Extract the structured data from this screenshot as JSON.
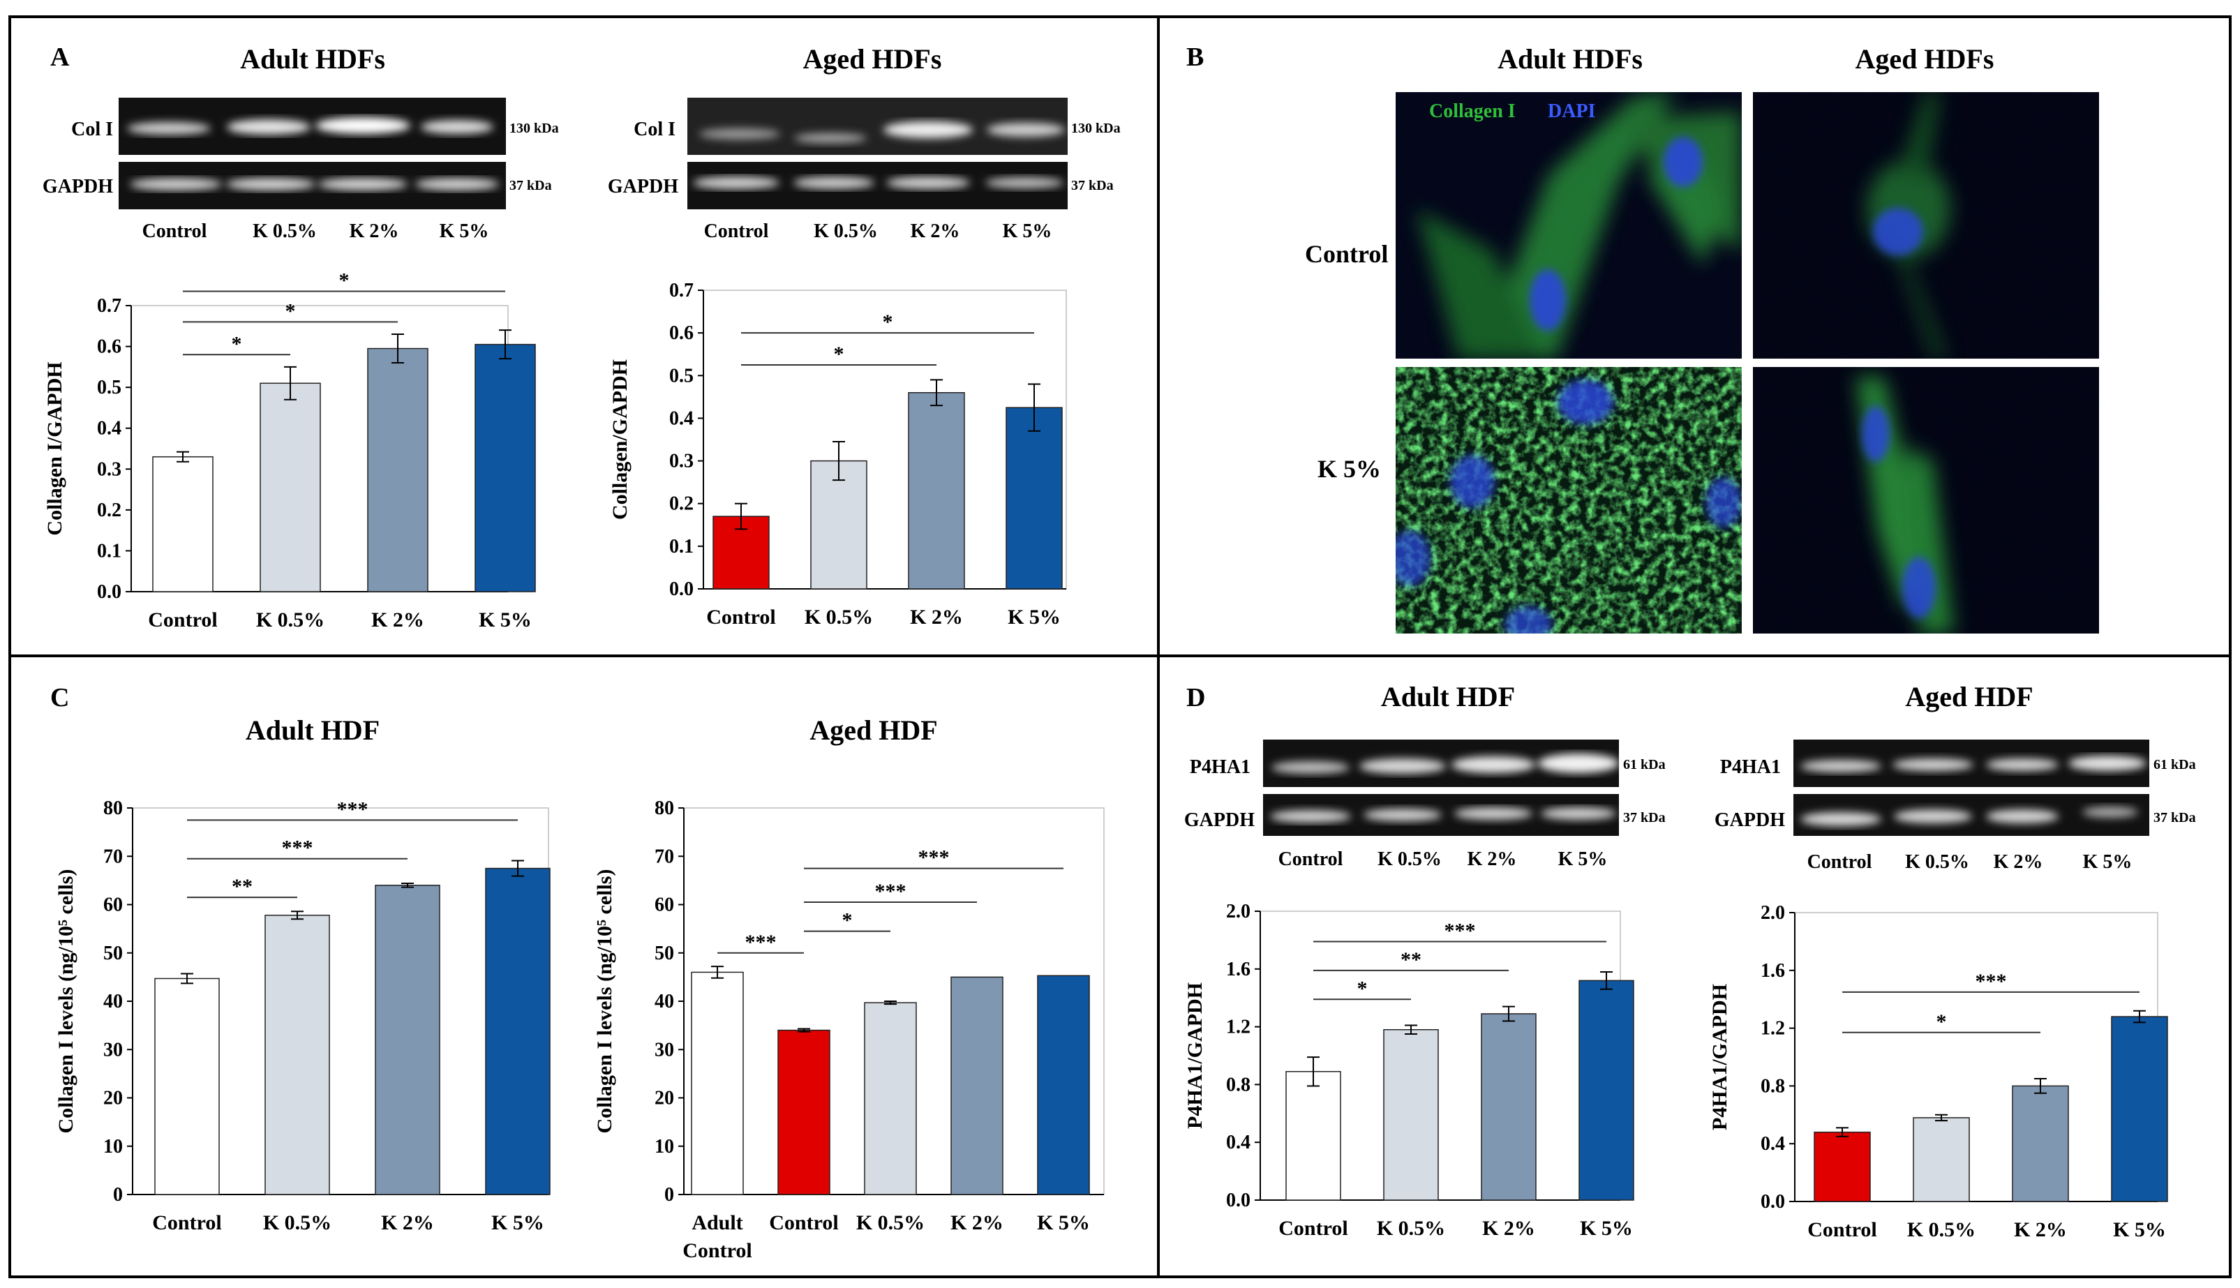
{
  "panels": {
    "A": {
      "letter": "A",
      "adult": {
        "title": "Adult HDFs",
        "blot_rows": [
          {
            "label": "Col I",
            "kda": "130 kDa"
          },
          {
            "label": "GAPDH",
            "kda": "37 kDa"
          }
        ],
        "lane_labels": [
          "Control",
          "K 0.5%",
          "K 2%",
          "K 5%"
        ]
      },
      "aged": {
        "title": "Aged HDFs",
        "blot_rows": [
          {
            "label": "Col I",
            "kda": "130 kDa"
          },
          {
            "label": "GAPDH",
            "kda": "37 kDa"
          }
        ],
        "lane_labels": [
          "Control",
          "K 0.5%",
          "K 2%",
          "K 5%"
        ]
      }
    },
    "B": {
      "letter": "B",
      "col_titles": [
        "Adult HDFs",
        "Aged HDFs"
      ],
      "row_labels": [
        "Control",
        "K 5%"
      ],
      "legend_collagen": "Collagen  I",
      "legend_dapi": "DAPI",
      "colors": {
        "collagen": "#2fbf3a",
        "dapi": "#3a5cff"
      }
    },
    "C": {
      "letter": "C",
      "titles": [
        "Adult HDF",
        "Aged HDF"
      ]
    },
    "D": {
      "letter": "D",
      "adult": {
        "title": "Adult HDF",
        "blot_rows": [
          {
            "label": "P4HA1",
            "kda": "61 kDa"
          },
          {
            "label": "GAPDH",
            "kda": "37 kDa"
          }
        ],
        "lane_labels": [
          "Control",
          "K 0.5%",
          "K 2%",
          "K 5%"
        ]
      },
      "aged": {
        "title": "Aged HDF",
        "blot_rows": [
          {
            "label": "P4HA1",
            "kda": "61 kDa"
          },
          {
            "label": "GAPDH",
            "kda": "37 kDa"
          }
        ],
        "lane_labels": [
          "Control",
          "K 0.5%",
          "K 2%",
          "K 5%"
        ]
      }
    }
  },
  "chart_data": [
    {
      "id": "A-adult",
      "type": "bar",
      "ylabel": "Collagen I/GAPDH",
      "ylim": [
        0,
        0.7
      ],
      "yticks": [
        "0.0",
        "0.1",
        "0.2",
        "0.3",
        "0.4",
        "0.5",
        "0.6",
        "0.7"
      ],
      "categories": [
        "Control",
        "K 0.5%",
        "K 2%",
        "K 5%"
      ],
      "values": [
        0.33,
        0.51,
        0.595,
        0.605
      ],
      "errors": [
        0.012,
        0.04,
        0.035,
        0.035
      ],
      "colors": [
        "#ffffff",
        "#d6dce4",
        "#8097b1",
        "#0f56a0"
      ],
      "significance": [
        {
          "from": 0,
          "to": 1,
          "label": "*",
          "y": 0.58
        },
        {
          "from": 0,
          "to": 2,
          "label": "*",
          "y": 0.66
        },
        {
          "from": 0,
          "to": 3,
          "label": "*",
          "y": 0.735
        }
      ]
    },
    {
      "id": "A-aged",
      "type": "bar",
      "ylabel": "Collagen/GAPDH",
      "ylim": [
        0,
        0.7
      ],
      "yticks": [
        "0.0",
        "0.1",
        "0.2",
        "0.3",
        "0.4",
        "0.5",
        "0.6",
        "0.7"
      ],
      "categories": [
        "Control",
        "K 0.5%",
        "K 2%",
        "K 5%"
      ],
      "values": [
        0.17,
        0.3,
        0.46,
        0.425
      ],
      "errors": [
        0.03,
        0.045,
        0.03,
        0.055
      ],
      "colors": [
        "#e00000",
        "#d6dce4",
        "#8097b1",
        "#0f56a0"
      ],
      "significance": [
        {
          "from": 0,
          "to": 2,
          "label": "*",
          "y": 0.525
        },
        {
          "from": 0,
          "to": 3,
          "label": "*",
          "y": 0.6
        }
      ]
    },
    {
      "id": "C-adult",
      "type": "bar",
      "ylabel": "Collagen I levels  (ng/10⁵ cells)",
      "ylim": [
        0,
        80
      ],
      "yticks": [
        "0",
        "10",
        "20",
        "30",
        "40",
        "50",
        "60",
        "70",
        "80"
      ],
      "categories": [
        "Control",
        "K 0.5%",
        "K 2%",
        "K 5%"
      ],
      "values": [
        44.7,
        57.8,
        64.0,
        67.5
      ],
      "errors": [
        1.0,
        0.8,
        0.4,
        1.6
      ],
      "colors": [
        "#ffffff",
        "#d6dce4",
        "#8097b1",
        "#0f56a0"
      ],
      "significance": [
        {
          "from": 0,
          "to": 1,
          "label": "**",
          "y": 61.5
        },
        {
          "from": 0,
          "to": 2,
          "label": "***",
          "y": 69.5
        },
        {
          "from": 0,
          "to": 3,
          "label": "***",
          "y": 77.5
        }
      ]
    },
    {
      "id": "C-aged",
      "type": "bar",
      "ylabel": "Collagen I levels  (ng/10⁵ cells)",
      "ylim": [
        0,
        80
      ],
      "yticks": [
        "0",
        "10",
        "20",
        "30",
        "40",
        "50",
        "60",
        "70",
        "80"
      ],
      "categories": [
        "Adult\nControl",
        "Control",
        "K 0.5%",
        "K 2%",
        "K 5%"
      ],
      "values": [
        46.0,
        34.0,
        39.7,
        45.0,
        45.3
      ],
      "errors": [
        1.2,
        0.3,
        0.3,
        0,
        0
      ],
      "colors": [
        "#ffffff",
        "#e00000",
        "#d6dce4",
        "#8097b1",
        "#0f56a0"
      ],
      "significance": [
        {
          "from": 0,
          "to": 1,
          "label": "***",
          "y": 50
        },
        {
          "from": 1,
          "to": 2,
          "label": "*",
          "y": 54.5
        },
        {
          "from": 1,
          "to": 3,
          "label": "***",
          "y": 60.5
        },
        {
          "from": 1,
          "to": 4,
          "label": "***",
          "y": 67.5
        }
      ]
    },
    {
      "id": "D-adult",
      "type": "bar",
      "ylabel": "P4HA1/GAPDH",
      "ylim": [
        0,
        2.0
      ],
      "yticks": [
        "0.0",
        "0.4",
        "0.8",
        "1.2",
        "1.6",
        "2.0"
      ],
      "categories": [
        "Control",
        "K 0.5%",
        "K 2%",
        "K 5%"
      ],
      "values": [
        0.89,
        1.18,
        1.29,
        1.52
      ],
      "errors": [
        0.1,
        0.03,
        0.05,
        0.06
      ],
      "colors": [
        "#ffffff",
        "#d6dce4",
        "#8097b1",
        "#0f56a0"
      ],
      "significance": [
        {
          "from": 0,
          "to": 1,
          "label": "*",
          "y": 1.39
        },
        {
          "from": 0,
          "to": 2,
          "label": "**",
          "y": 1.59
        },
        {
          "from": 0,
          "to": 3,
          "label": "***",
          "y": 1.79
        }
      ]
    },
    {
      "id": "D-aged",
      "type": "bar",
      "ylabel": "P4HA1/GAPDH",
      "ylim": [
        0,
        2.0
      ],
      "yticks": [
        "0.0",
        "0.4",
        "0.8",
        "1.2",
        "1.6",
        "2.0"
      ],
      "categories": [
        "Control",
        "K 0.5%",
        "K 2%",
        "K 5%"
      ],
      "values": [
        0.48,
        0.58,
        0.8,
        1.28
      ],
      "errors": [
        0.03,
        0.02,
        0.05,
        0.04
      ],
      "colors": [
        "#e00000",
        "#d6dce4",
        "#8097b1",
        "#0f56a0"
      ],
      "significance": [
        {
          "from": 0,
          "to": 2,
          "label": "*",
          "y": 1.17
        },
        {
          "from": 0,
          "to": 3,
          "label": "***",
          "y": 1.45
        }
      ]
    }
  ]
}
